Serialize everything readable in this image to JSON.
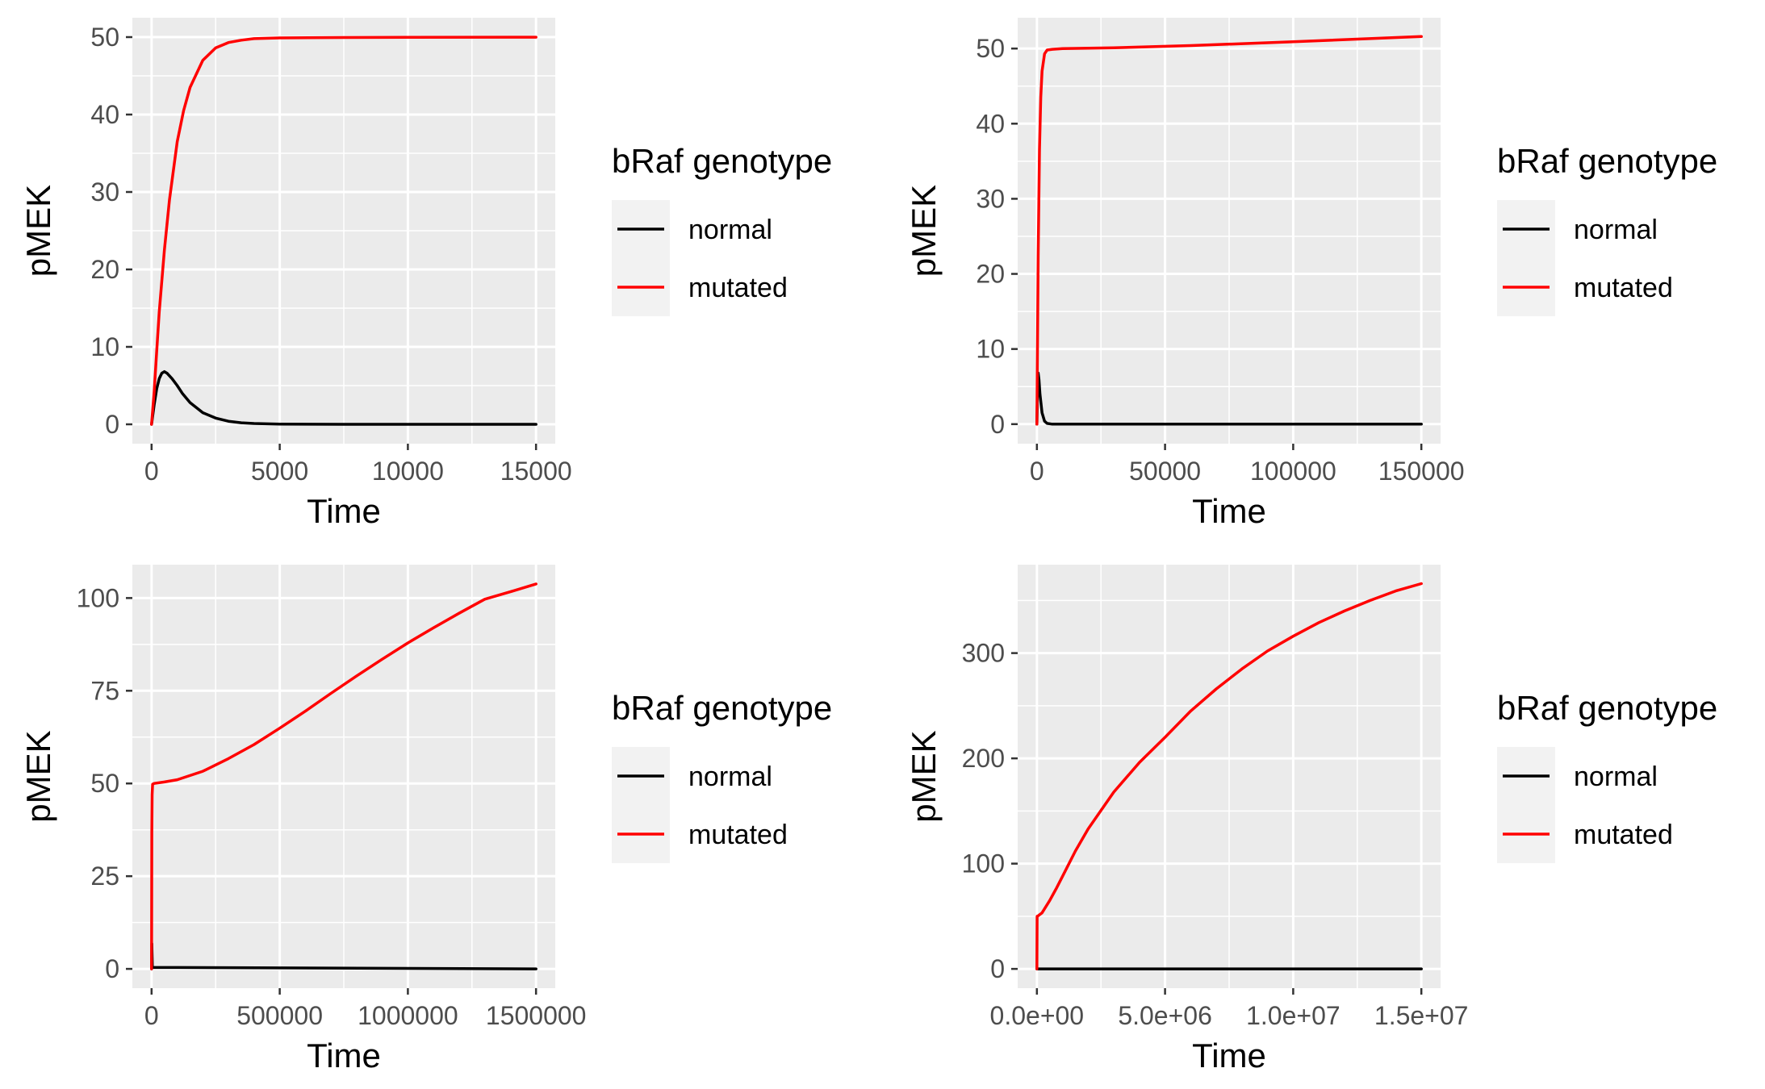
{
  "colors": {
    "normal": "#000000",
    "mutated": "#ff0000",
    "panel": "#ebebeb",
    "grid": "#ffffff"
  },
  "chart_data": [
    {
      "type": "line",
      "xlabel": "Time",
      "ylabel": "pMEK",
      "xlim": [
        -750,
        15750
      ],
      "ylim": [
        -2.5,
        52.5
      ],
      "x_ticks": [
        0,
        5000,
        10000,
        15000
      ],
      "x_tick_labels": [
        "0",
        "5000",
        "10000",
        "15000"
      ],
      "y_ticks": [
        0,
        10,
        20,
        30,
        40,
        50
      ],
      "y_tick_labels": [
        "0",
        "10",
        "20",
        "30",
        "40",
        "50"
      ],
      "legend": {
        "title": "bRaf genotype",
        "position": "right",
        "entries": [
          "normal",
          "mutated"
        ]
      },
      "series": [
        {
          "name": "normal",
          "color": "#000000",
          "x": [
            0,
            100,
            200,
            300,
            400,
            500,
            600,
            800,
            1000,
            1200,
            1500,
            2000,
            2500,
            3000,
            3500,
            4000,
            5000,
            7500,
            10000,
            15000
          ],
          "values": [
            0,
            2.5,
            4.6,
            5.9,
            6.6,
            6.8,
            6.6,
            5.9,
            5.0,
            4.0,
            2.8,
            1.5,
            0.8,
            0.4,
            0.2,
            0.1,
            0.03,
            0,
            0,
            0
          ]
        },
        {
          "name": "mutated",
          "color": "#ff0000",
          "x": [
            0,
            100,
            200,
            300,
            500,
            700,
            1000,
            1250,
            1500,
            2000,
            2500,
            3000,
            3500,
            4000,
            5000,
            7500,
            10000,
            15000
          ],
          "values": [
            0,
            4.2,
            9.5,
            14.5,
            22.5,
            29.0,
            36.5,
            40.5,
            43.5,
            47.0,
            48.6,
            49.3,
            49.6,
            49.8,
            49.9,
            49.95,
            49.97,
            49.99
          ]
        }
      ]
    },
    {
      "type": "line",
      "xlabel": "Time",
      "ylabel": "pMEK",
      "xlim": [
        -7500,
        157500
      ],
      "ylim": [
        -2.6,
        54.1
      ],
      "x_ticks": [
        0,
        50000,
        100000,
        150000
      ],
      "x_tick_labels": [
        "0",
        "50000",
        "100000",
        "150000"
      ],
      "y_ticks": [
        0,
        10,
        20,
        30,
        40,
        50
      ],
      "y_tick_labels": [
        "0",
        "10",
        "20",
        "30",
        "40",
        "50"
      ],
      "legend": {
        "title": "bRaf genotype",
        "position": "right",
        "entries": [
          "normal",
          "mutated"
        ]
      },
      "series": [
        {
          "name": "normal",
          "color": "#000000",
          "x": [
            0,
            300,
            500,
            800,
            1200,
            2000,
            3000,
            4000,
            6000,
            150000
          ],
          "values": [
            0,
            5.9,
            6.8,
            5.9,
            4.0,
            1.5,
            0.4,
            0.1,
            0,
            0
          ]
        },
        {
          "name": "mutated",
          "color": "#ff0000",
          "x": [
            0,
            500,
            1000,
            1500,
            2000,
            3000,
            4000,
            6000,
            10000,
            30000,
            60000,
            100000,
            150000
          ],
          "values": [
            0,
            22.5,
            36.5,
            43.5,
            47.0,
            49.3,
            49.8,
            49.9,
            50.0,
            50.1,
            50.4,
            50.9,
            51.6
          ]
        }
      ]
    },
    {
      "type": "line",
      "xlabel": "Time",
      "ylabel": "pMEK",
      "xlim": [
        -75000,
        1575000
      ],
      "ylim": [
        -5.2,
        109
      ],
      "x_ticks": [
        0,
        500000,
        1000000,
        1500000
      ],
      "x_tick_labels": [
        "0",
        "500000",
        "1000000",
        "1500000"
      ],
      "y_ticks": [
        0,
        25,
        50,
        75,
        100
      ],
      "y_tick_labels": [
        "0",
        "25",
        "50",
        "75",
        "100"
      ],
      "legend": {
        "title": "bRaf genotype",
        "position": "right",
        "entries": [
          "normal",
          "mutated"
        ]
      },
      "series": [
        {
          "name": "normal",
          "color": "#000000",
          "x": [
            0,
            1000,
            3000,
            1500000
          ],
          "values": [
            0,
            6.8,
            0.4,
            0
          ]
        },
        {
          "name": "mutated",
          "color": "#ff0000",
          "x": [
            0,
            1000,
            2000,
            4000,
            10000,
            50000,
            100000,
            200000,
            300000,
            400000,
            500000,
            600000,
            700000,
            800000,
            900000,
            1000000,
            1100000,
            1200000,
            1300000,
            1400000,
            1500000
          ],
          "values": [
            0,
            36.5,
            47.0,
            49.8,
            50.0,
            50.4,
            51.0,
            53.3,
            56.7,
            60.5,
            64.9,
            69.5,
            74.3,
            79.0,
            83.5,
            87.9,
            92.0,
            95.9,
            99.7,
            101.7,
            103.8
          ]
        }
      ]
    },
    {
      "type": "line",
      "xlabel": "Time",
      "ylabel": "pMEK",
      "xlim": [
        -750000,
        15750000
      ],
      "ylim": [
        -18.3,
        384
      ],
      "x_ticks": [
        0,
        5000000,
        10000000,
        15000000
      ],
      "x_tick_labels": [
        "0.0e+00",
        "5.0e+06",
        "1.0e+07",
        "1.5e+07"
      ],
      "y_ticks": [
        0,
        100,
        200,
        300
      ],
      "y_tick_labels": [
        "0",
        "100",
        "200",
        "300"
      ],
      "legend": {
        "title": "bRaf genotype",
        "position": "right",
        "entries": [
          "normal",
          "mutated"
        ]
      },
      "series": [
        {
          "name": "normal",
          "color": "#000000",
          "x": [
            0,
            15000000
          ],
          "values": [
            0,
            0
          ]
        },
        {
          "name": "mutated",
          "color": "#ff0000",
          "x": [
            0,
            10000,
            50000,
            200000,
            500000,
            750000,
            1000000,
            1500000,
            2000000,
            3000000,
            4000000,
            5000000,
            6000000,
            7000000,
            8000000,
            9000000,
            10000000,
            11000000,
            12000000,
            13000000,
            14000000,
            15000000
          ],
          "values": [
            0,
            50.0,
            50.4,
            53.3,
            65.0,
            76.0,
            88.0,
            112.0,
            133.0,
            168.0,
            196.0,
            220.0,
            245.0,
            266.0,
            285.0,
            302.0,
            316.0,
            329.0,
            340.0,
            350.0,
            359.0,
            366.0
          ]
        }
      ]
    }
  ]
}
